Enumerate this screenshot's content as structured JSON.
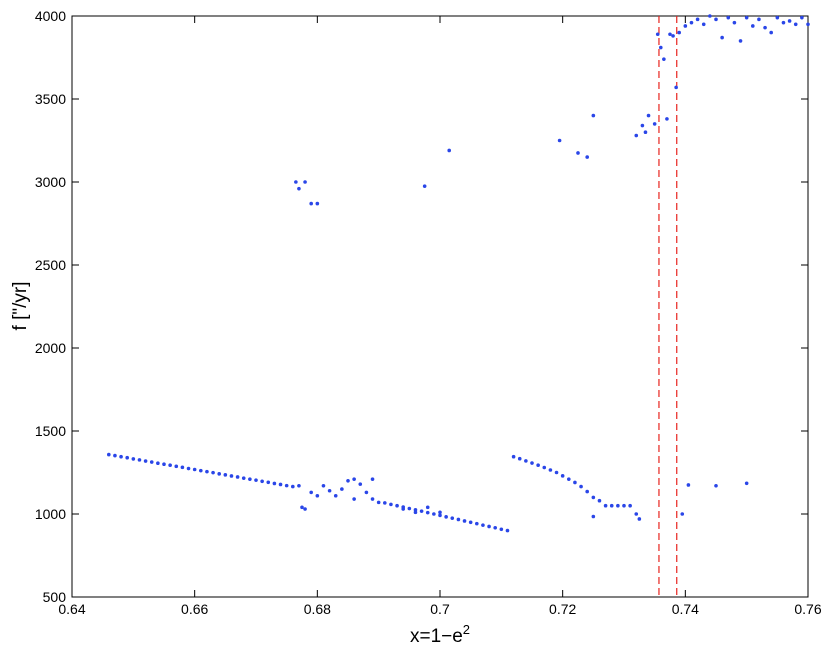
{
  "chart_data": {
    "type": "scatter",
    "xlabel": "x=1−e",
    "xlabel_sup": "2",
    "ylabel": "f [\"/yr]",
    "xlim": [
      0.64,
      0.76
    ],
    "ylim": [
      500,
      4000
    ],
    "xticks": [
      0.64,
      0.66,
      0.68,
      0.7,
      0.72,
      0.74,
      0.76
    ],
    "yticks": [
      500,
      1000,
      1500,
      2000,
      2500,
      3000,
      3500,
      4000
    ],
    "color": "#2a46e8",
    "vlines": [
      0.7357,
      0.7386
    ],
    "vline_color": "#e8231e",
    "x": [
      0.646,
      0.647,
      0.648,
      0.649,
      0.65,
      0.651,
      0.652,
      0.653,
      0.654,
      0.655,
      0.656,
      0.657,
      0.658,
      0.659,
      0.66,
      0.661,
      0.662,
      0.663,
      0.664,
      0.665,
      0.666,
      0.667,
      0.668,
      0.669,
      0.67,
      0.671,
      0.672,
      0.673,
      0.674,
      0.675,
      0.676,
      0.677,
      0.6775,
      0.678,
      0.679,
      0.68,
      0.681,
      0.682,
      0.683,
      0.684,
      0.685,
      0.686,
      0.686,
      0.687,
      0.688,
      0.689,
      0.689,
      0.69,
      0.691,
      0.692,
      0.693,
      0.694,
      0.695,
      0.696,
      0.697,
      0.698,
      0.699,
      0.7,
      0.701,
      0.702,
      0.703,
      0.704,
      0.705,
      0.706,
      0.707,
      0.708,
      0.709,
      0.71,
      0.711,
      0.694,
      0.696,
      0.698,
      0.7,
      0.712,
      0.713,
      0.714,
      0.715,
      0.716,
      0.717,
      0.718,
      0.719,
      0.72,
      0.721,
      0.722,
      0.723,
      0.724,
      0.725,
      0.726,
      0.727,
      0.728,
      0.729,
      0.73,
      0.731,
      0.732,
      0.7325,
      0.725,
      0.6765,
      0.677,
      0.678,
      0.679,
      0.68,
      0.6975,
      0.7015,
      0.7195,
      0.7225,
      0.724,
      0.725,
      0.732,
      0.733,
      0.7335,
      0.734,
      0.735,
      0.7355,
      0.736,
      0.7365,
      0.737,
      0.7375,
      0.738,
      0.7385,
      0.739,
      0.7395,
      0.7405,
      0.745,
      0.75,
      0.74,
      0.741,
      0.742,
      0.743,
      0.744,
      0.745,
      0.746,
      0.747,
      0.748,
      0.749,
      0.75,
      0.751,
      0.752,
      0.753,
      0.754,
      0.755,
      0.756,
      0.757,
      0.758,
      0.759,
      0.76
    ],
    "y": [
      1358,
      1352,
      1345,
      1339,
      1332,
      1326,
      1319,
      1313,
      1306,
      1300,
      1294,
      1287,
      1281,
      1274,
      1268,
      1261,
      1255,
      1249,
      1242,
      1236,
      1229,
      1223,
      1216,
      1210,
      1204,
      1197,
      1191,
      1184,
      1178,
      1171,
      1165,
      1170,
      1040,
      1030,
      1130,
      1110,
      1170,
      1140,
      1110,
      1150,
      1200,
      1210,
      1090,
      1180,
      1130,
      1210,
      1090,
      1070,
      1067,
      1058,
      1050,
      1042,
      1033,
      1025,
      1017,
      1008,
      1000,
      992,
      983,
      975,
      967,
      958,
      950,
      942,
      933,
      925,
      917,
      908,
      900,
      1030,
      1010,
      1040,
      1010,
      1345,
      1333,
      1320,
      1307,
      1294,
      1280,
      1265,
      1250,
      1230,
      1210,
      1190,
      1165,
      1135,
      1100,
      1080,
      1050,
      1050,
      1050,
      1050,
      1050,
      1000,
      970,
      985,
      3000,
      2960,
      3000,
      2870,
      2870,
      2975,
      3190,
      3250,
      3175,
      3150,
      3400,
      3280,
      3340,
      3300,
      3400,
      3350,
      3890,
      3810,
      3740,
      3380,
      3890,
      3880,
      3570,
      3900,
      1000,
      1175,
      1170,
      1185,
      3940,
      3960,
      3980,
      3950,
      4000,
      3980,
      3870,
      3990,
      3960,
      3850,
      3990,
      3940,
      3980,
      3930,
      3900,
      3990,
      3960,
      3970,
      3950,
      3990,
      3950
    ]
  }
}
